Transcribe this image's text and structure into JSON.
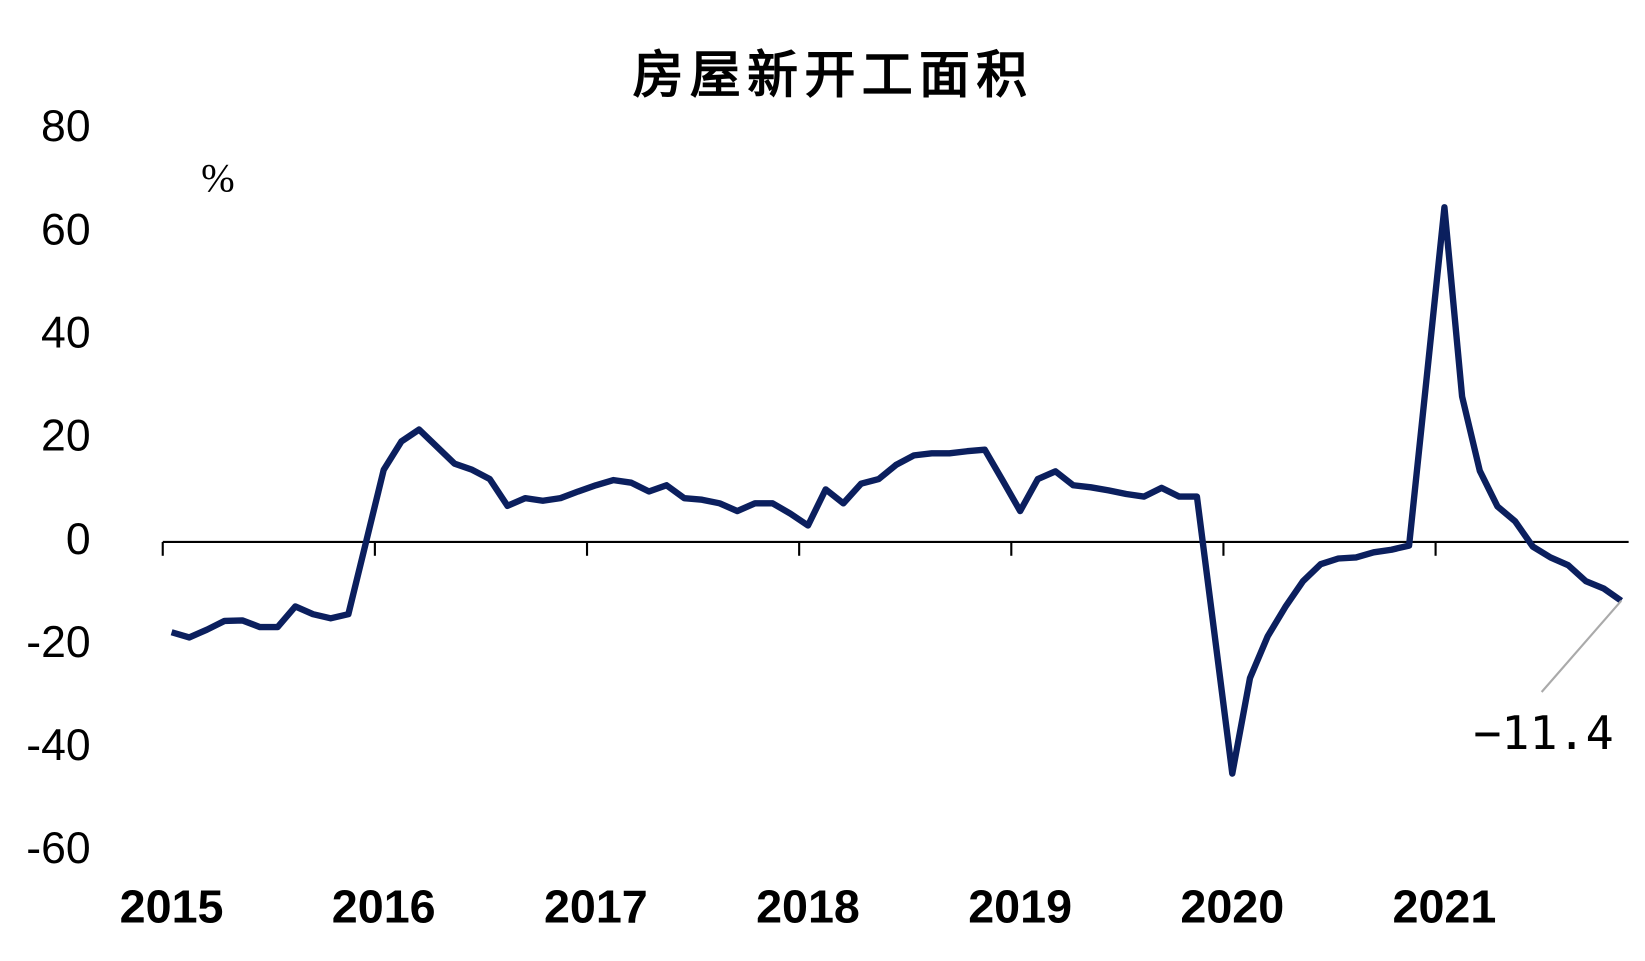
{
  "chart_data": {
    "type": "line",
    "title": "房屋新开工面积",
    "y_label": "%",
    "categories": [
      "2015",
      null,
      null,
      null,
      null,
      null,
      null,
      null,
      null,
      null,
      null,
      null,
      "2016",
      null,
      null,
      null,
      null,
      null,
      null,
      null,
      null,
      null,
      null,
      null,
      "2017",
      null,
      null,
      null,
      null,
      null,
      null,
      null,
      null,
      null,
      null,
      null,
      "2018",
      null,
      null,
      null,
      null,
      null,
      null,
      null,
      null,
      null,
      null,
      null,
      "2019",
      null,
      null,
      null,
      null,
      null,
      null,
      null,
      null,
      null,
      null,
      null,
      "2020",
      null,
      null,
      null,
      null,
      null,
      null,
      null,
      null,
      null,
      null,
      null,
      "2021",
      null,
      null,
      null,
      null,
      null,
      null,
      null,
      null,
      null,
      null,
      null
    ],
    "series": [
      {
        "name": "房屋新开工面积",
        "color": "#0b1f5e",
        "values": [
          -17.5,
          -18.5,
          -17,
          -15.3,
          -15.2,
          -16.5,
          -16.5,
          -12.5,
          -14,
          -14.8,
          -14,
          0,
          14,
          19.5,
          21.8,
          18.5,
          15.2,
          14,
          12.2,
          7,
          8.5,
          8,
          8.5,
          9.8,
          11,
          12,
          11.5,
          9.8,
          11,
          8.5,
          8.2,
          7.5,
          6,
          7.5,
          7.5,
          5.5,
          3.2,
          10.2,
          7.5,
          11.3,
          12.2,
          15,
          16.8,
          17.2,
          17.2,
          17.6,
          17.9,
          12,
          6,
          12.2,
          13.7,
          11,
          10.6,
          10,
          9.3,
          8.8,
          10.5,
          8.8,
          8.8,
          -18,
          -44.9,
          -26.4,
          -18.3,
          -12.6,
          -7.6,
          -4.3,
          -3.2,
          -3,
          -2,
          -1.5,
          -0.7,
          32,
          64.9,
          28.2,
          13.8,
          6.9,
          4,
          -0.9,
          -3,
          -4.5,
          -7.6,
          -9,
          -11.4,
          null
        ]
      }
    ],
    "annotation": "−11.4",
    "ylim": [
      -60,
      80
    ],
    "yticks": [
      -60,
      -40,
      -20,
      0,
      20,
      40,
      60,
      80
    ],
    "grid": false
  }
}
